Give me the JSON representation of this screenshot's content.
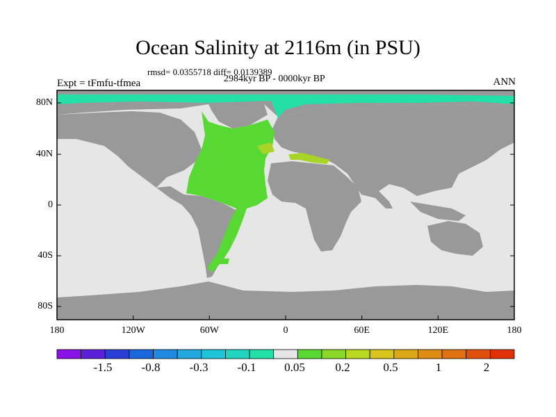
{
  "title": "Ocean Salinity at 2116m (in PSU)",
  "stats_line": "rmsd= 0.0355718 diff= 0.0139389",
  "period_line": "2984kyr BP - 0000kyr BP",
  "experiment_line": "Expt = tFmfu-tfmea",
  "season": "ANN",
  "lat_labels": [
    "80N",
    "40N",
    "0",
    "40S",
    "80S"
  ],
  "lon_labels": [
    "180",
    "120W",
    "60W",
    "0",
    "60E",
    "120E",
    "180"
  ],
  "colorbar": {
    "colors": [
      "#8a12e6",
      "#5a1fd9",
      "#2a3fd6",
      "#1a66dc",
      "#1f8ae0",
      "#22a8e0",
      "#1fc4d8",
      "#20d4c0",
      "#22e0a8",
      "#e6e6e6",
      "#58d832",
      "#8ad82a",
      "#b8d822",
      "#d8c41c",
      "#dca818",
      "#de8c14",
      "#e07010",
      "#e0500c",
      "#e03008"
    ],
    "labels": [
      "-1.5",
      "-0.8",
      "-0.3",
      "-0.1",
      "0.05",
      "0.2",
      "0.5",
      "1",
      "2"
    ]
  },
  "map_colors": {
    "ocean_neutral": "#e6e6e6",
    "land": "#999999",
    "positive_anomaly": "#58d832",
    "strong_positive": "#a8d428",
    "negative_anomaly": "#22e0a8"
  }
}
